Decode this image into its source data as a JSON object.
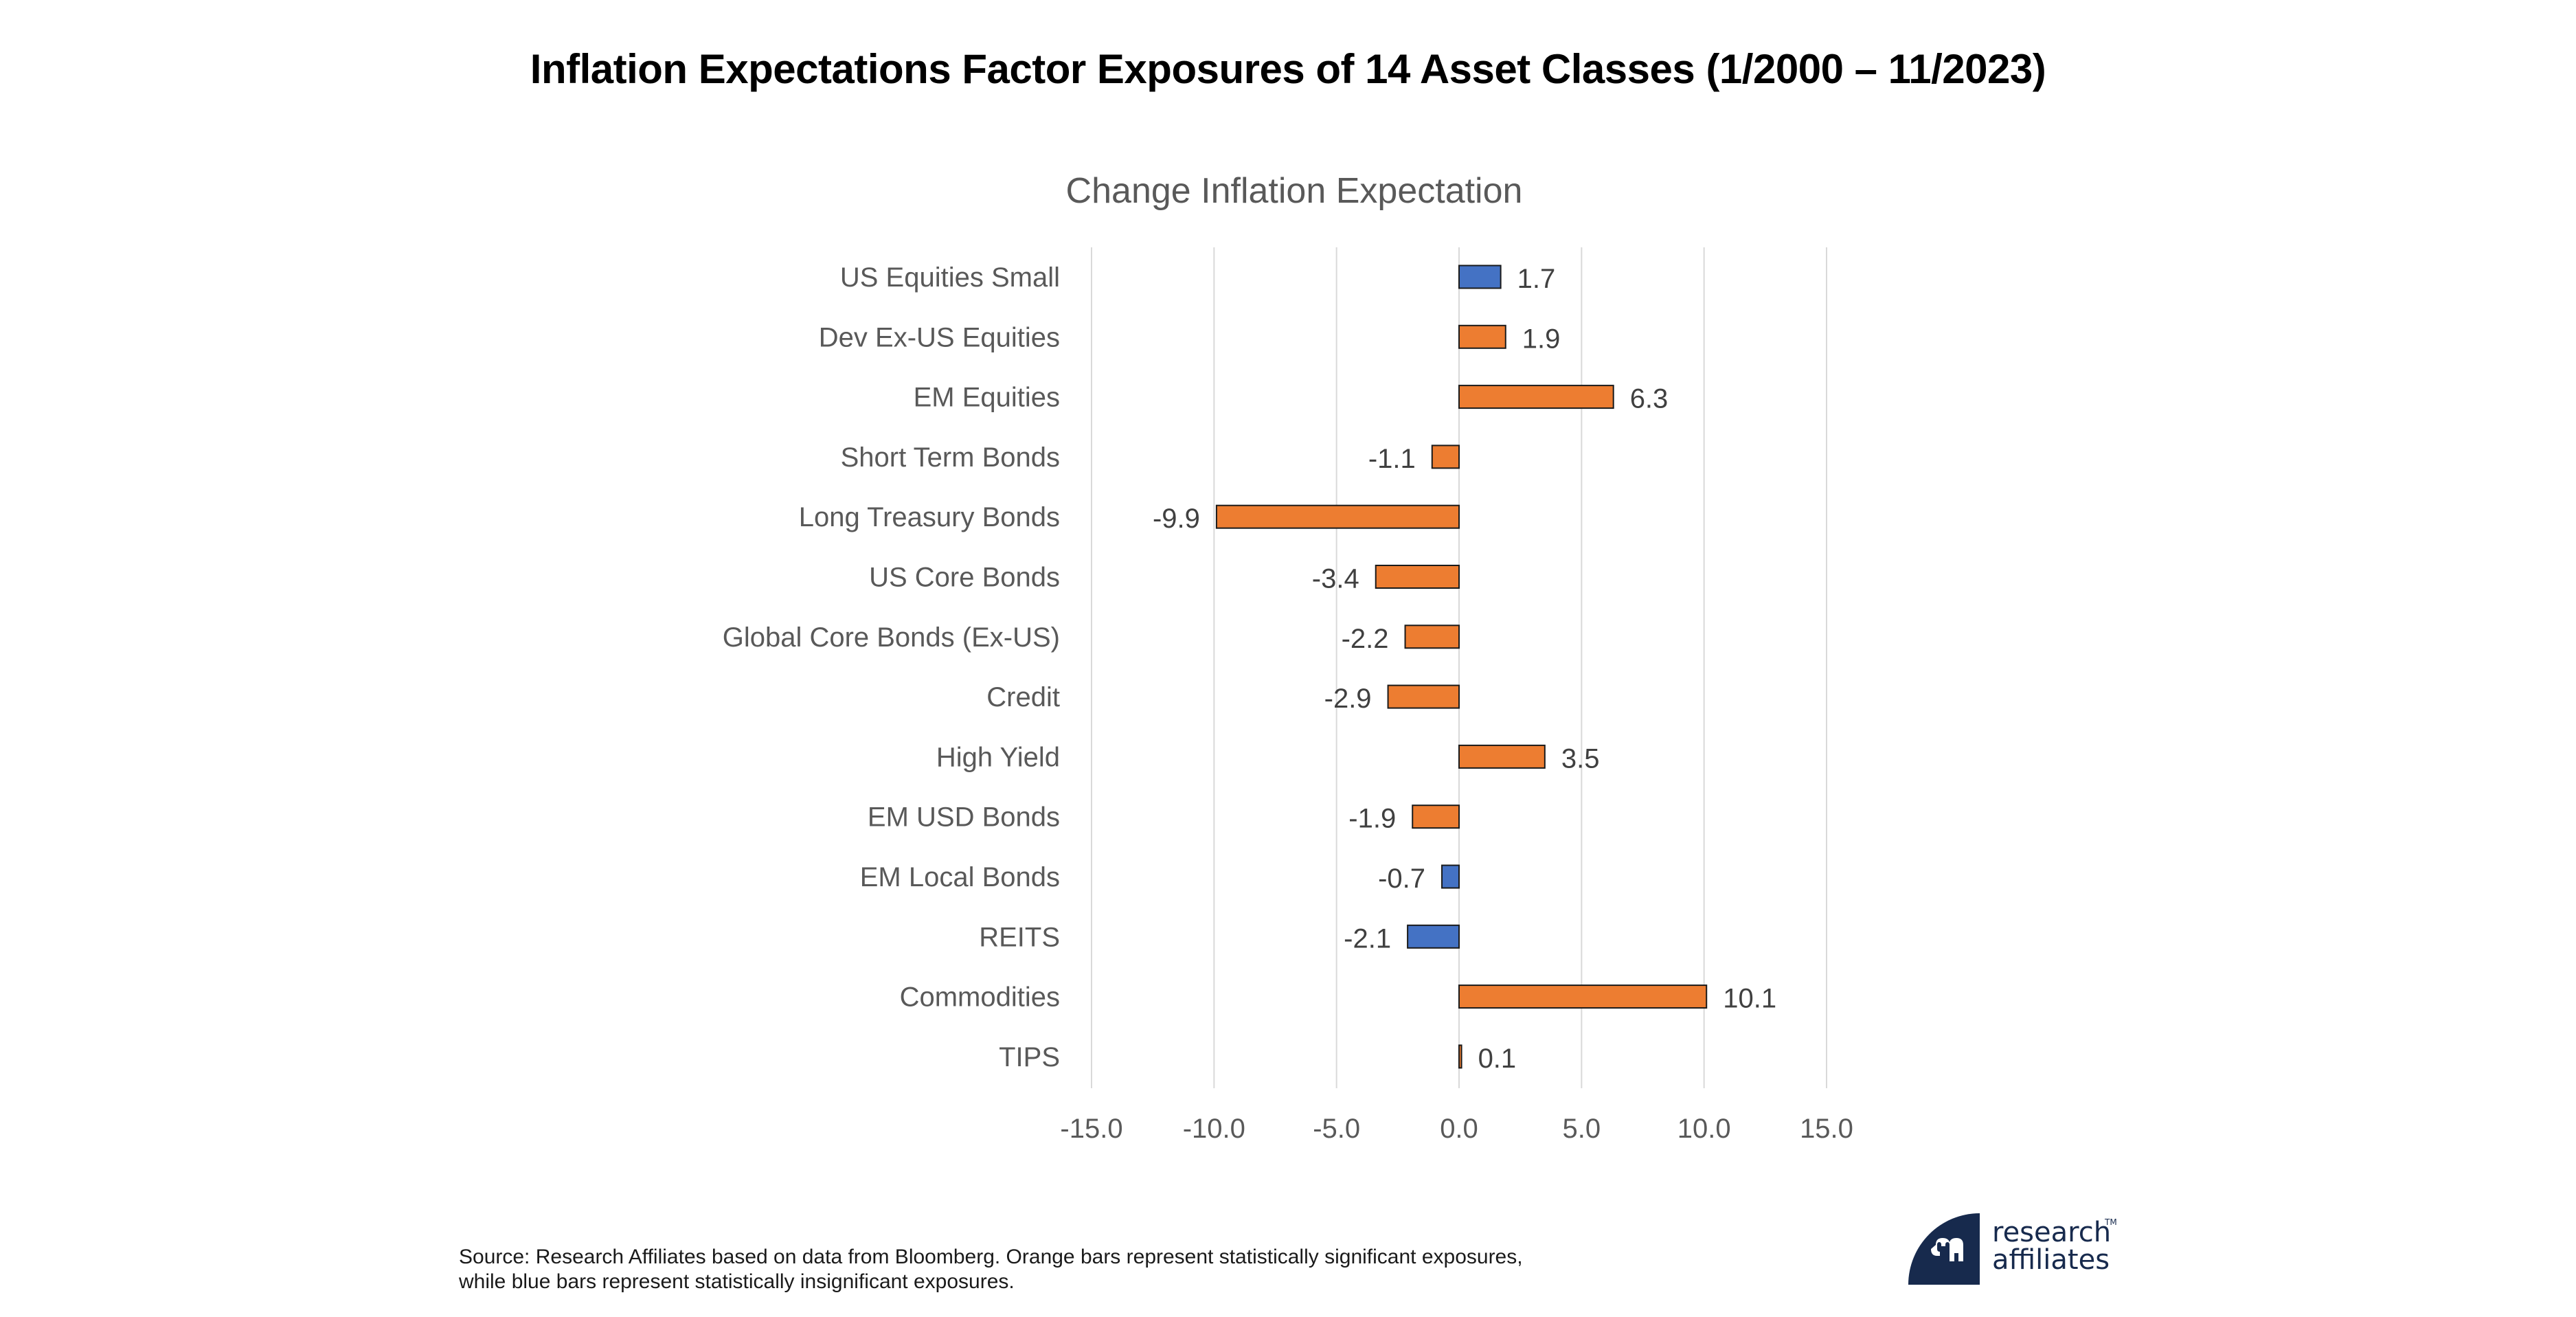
{
  "page": {
    "title": "Inflation Expectations Factor Exposures of 14 Asset Classes (1/2000 – 11/2023)",
    "footer_line1": "Source: Research Affiliates based on data from Bloomberg. Orange bars represent statistically significant exposures,",
    "footer_line2": "while blue bars represent statistically insignificant exposures.",
    "logo_line1": "research",
    "logo_line2": "affiliates",
    "logo_tm": "TM",
    "logo_color": "#172A4D"
  },
  "chart_data": {
    "type": "bar",
    "orientation": "horizontal",
    "title": "Change Inflation Expectation",
    "xlabel": "",
    "ylabel": "",
    "xlim": [
      -15,
      15
    ],
    "x_ticks": [
      -15,
      -10,
      -5,
      0,
      5,
      10,
      15
    ],
    "x_tick_labels": [
      "-15.0",
      "-10.0",
      "-5.0",
      "0.0",
      "5.0",
      "10.0",
      "15.0"
    ],
    "grid": "vertical",
    "legend": "none",
    "colors": {
      "significant": "#ED7D31",
      "insignificant": "#4472C4"
    },
    "categories": [
      "US Equities Small",
      "Dev Ex-US Equities",
      "EM Equities",
      "Short Term Bonds",
      "Long Treasury Bonds",
      "US Core Bonds",
      "Global Core Bonds (Ex-US)",
      "Credit",
      "High Yield",
      "EM USD Bonds",
      "EM Local Bonds",
      "REITS",
      "Commodities",
      "TIPS"
    ],
    "values": [
      1.7,
      1.9,
      6.3,
      -1.1,
      -9.9,
      -3.4,
      -2.2,
      -2.9,
      3.5,
      -1.9,
      -0.7,
      -2.1,
      10.1,
      0.1
    ],
    "data_labels": [
      "1.7",
      "1.9",
      "6.3",
      "-1.1",
      "-9.9",
      "-3.4",
      "-2.2",
      "-2.9",
      "3.5",
      "-1.9",
      "-0.7",
      "-2.1",
      "10.1",
      "0.1"
    ],
    "significant": [
      false,
      true,
      true,
      true,
      true,
      true,
      true,
      true,
      true,
      true,
      false,
      false,
      true,
      true
    ]
  }
}
